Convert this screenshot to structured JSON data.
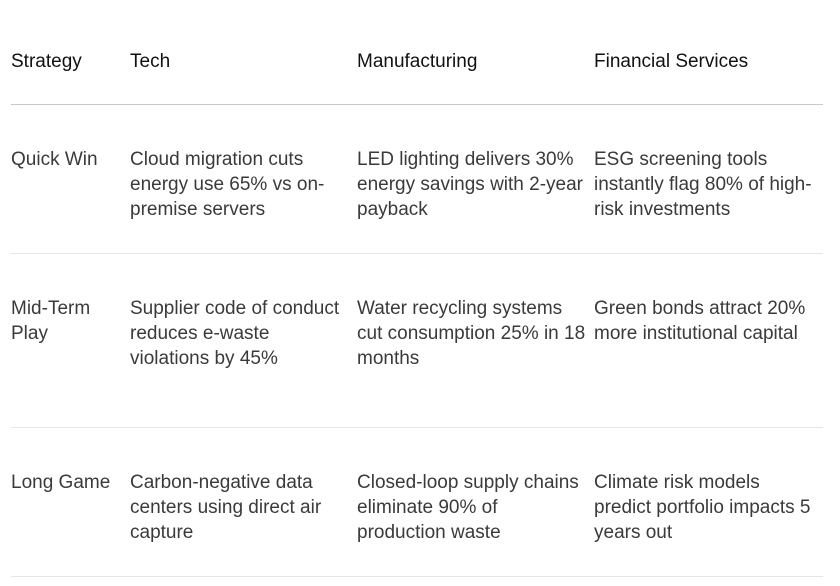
{
  "table": {
    "headers": [
      "Strategy",
      "Tech",
      "Manufacturing",
      "Financial Services"
    ],
    "rows": [
      {
        "strategy": "Quick Win",
        "tech": "Cloud migration cuts energy use 65% vs on-premise servers",
        "manufacturing": "LED lighting delivers 30% energy savings with 2-year payback",
        "financial_services": "ESG screening tools instantly flag 80% of high-risk investments"
      },
      {
        "strategy": "Mid-Term Play",
        "tech": "Supplier code of conduct reduces e-waste violations by 45%",
        "manufacturing": "Water recycling systems cut consumption 25% in 18 months",
        "financial_services": "Green bonds attract 20% more institutional capital"
      },
      {
        "strategy": "Long Game",
        "tech": "Carbon-negative data centers using direct air capture",
        "manufacturing": "Closed-loop supply chains eliminate 90% of production waste",
        "financial_services": "Climate risk models predict portfolio impacts 5 years out"
      }
    ]
  }
}
